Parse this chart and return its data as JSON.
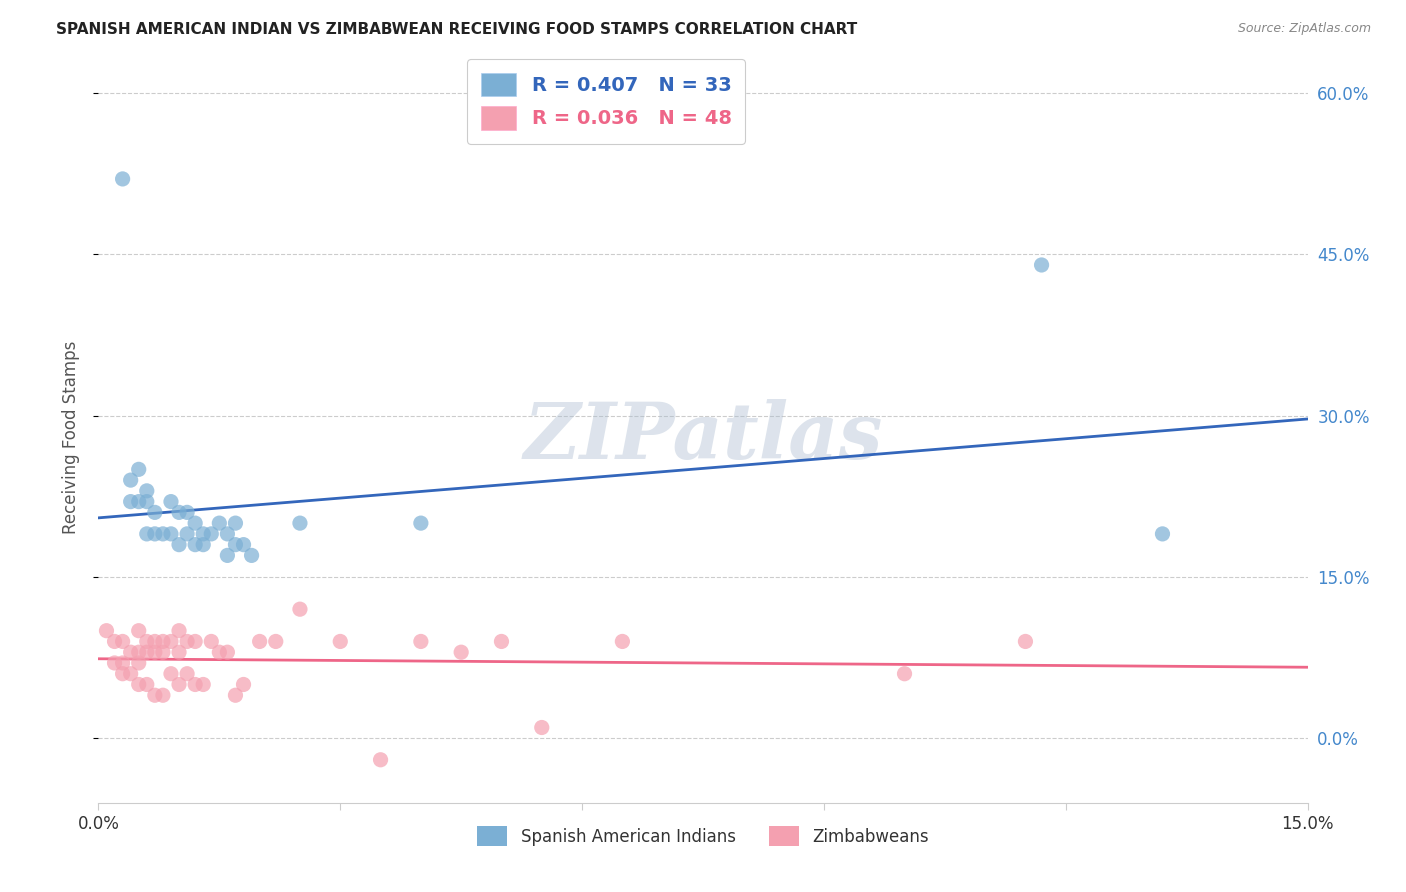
{
  "title": "SPANISH AMERICAN INDIAN VS ZIMBABWEAN RECEIVING FOOD STAMPS CORRELATION CHART",
  "source": "Source: ZipAtlas.com",
  "ylabel": "Receiving Food Stamps",
  "x_min": 0.0,
  "x_max": 0.15,
  "y_min": -0.06,
  "y_max": 0.62,
  "y_ticks": [
    0.0,
    0.15,
    0.3,
    0.45,
    0.6
  ],
  "y_tick_labels_right": [
    "0.0%",
    "15.0%",
    "30.0%",
    "45.0%",
    "60.0%"
  ],
  "blue_color": "#7BAFD4",
  "pink_color": "#F4A0B0",
  "blue_line_color": "#3366BB",
  "pink_line_color": "#EE6688",
  "legend_blue_label": "R = 0.407   N = 33",
  "legend_pink_label": "R = 0.036   N = 48",
  "legend_label_blue": "Spanish American Indians",
  "legend_label_pink": "Zimbabweans",
  "watermark": "ZIPatlas",
  "watermark_color": "#AABBD0",
  "blue_scatter_x": [
    0.003,
    0.004,
    0.004,
    0.005,
    0.005,
    0.006,
    0.006,
    0.006,
    0.007,
    0.007,
    0.008,
    0.009,
    0.009,
    0.01,
    0.01,
    0.011,
    0.011,
    0.012,
    0.012,
    0.013,
    0.013,
    0.014,
    0.015,
    0.016,
    0.016,
    0.017,
    0.017,
    0.018,
    0.019,
    0.025,
    0.04,
    0.117,
    0.132
  ],
  "blue_scatter_y": [
    0.52,
    0.24,
    0.22,
    0.25,
    0.22,
    0.23,
    0.22,
    0.19,
    0.21,
    0.19,
    0.19,
    0.22,
    0.19,
    0.21,
    0.18,
    0.21,
    0.19,
    0.2,
    0.18,
    0.19,
    0.18,
    0.19,
    0.2,
    0.19,
    0.17,
    0.2,
    0.18,
    0.18,
    0.17,
    0.2,
    0.2,
    0.44,
    0.19
  ],
  "pink_scatter_x": [
    0.001,
    0.002,
    0.002,
    0.003,
    0.003,
    0.003,
    0.004,
    0.004,
    0.005,
    0.005,
    0.005,
    0.005,
    0.006,
    0.006,
    0.006,
    0.007,
    0.007,
    0.007,
    0.008,
    0.008,
    0.008,
    0.009,
    0.009,
    0.01,
    0.01,
    0.01,
    0.011,
    0.011,
    0.012,
    0.012,
    0.013,
    0.014,
    0.015,
    0.016,
    0.017,
    0.018,
    0.02,
    0.022,
    0.025,
    0.03,
    0.035,
    0.04,
    0.045,
    0.05,
    0.055,
    0.065,
    0.1,
    0.115
  ],
  "pink_scatter_y": [
    0.1,
    0.09,
    0.07,
    0.09,
    0.07,
    0.06,
    0.08,
    0.06,
    0.1,
    0.08,
    0.07,
    0.05,
    0.09,
    0.08,
    0.05,
    0.09,
    0.08,
    0.04,
    0.09,
    0.08,
    0.04,
    0.09,
    0.06,
    0.1,
    0.08,
    0.05,
    0.09,
    0.06,
    0.09,
    0.05,
    0.05,
    0.09,
    0.08,
    0.08,
    0.04,
    0.05,
    0.09,
    0.09,
    0.12,
    0.09,
    -0.02,
    0.09,
    0.08,
    0.09,
    0.01,
    0.09,
    0.06,
    0.09
  ],
  "figsize": [
    14.06,
    8.92
  ],
  "dpi": 100
}
